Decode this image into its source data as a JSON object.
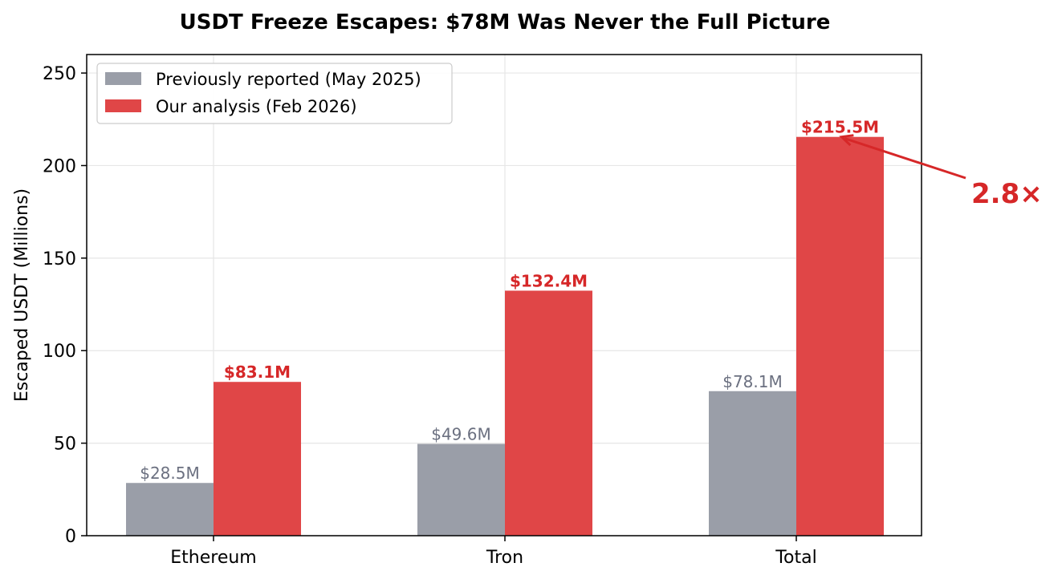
{
  "chart_data": {
    "type": "bar",
    "title": "USDT Freeze Escapes: $78M Was Never the Full Picture",
    "xlabel": "",
    "ylabel": "Escaped USDT (Millions)",
    "categories": [
      "Ethereum",
      "Tron",
      "Total"
    ],
    "ylim": [
      0,
      260
    ],
    "yticks": [
      0,
      50,
      100,
      150,
      200,
      250
    ],
    "grid": true,
    "legend_position": "top-left",
    "series": [
      {
        "name": "Previously reported (May 2025)",
        "values": [
          28.5,
          49.6,
          78.1
        ],
        "labels": [
          "$28.5M",
          "$49.6M",
          "$78.1M"
        ],
        "color": "#9a9ea8",
        "label_color": "#6b7080"
      },
      {
        "name": "Our analysis (Feb 2026)",
        "values": [
          83.1,
          132.4,
          215.5
        ],
        "labels": [
          "$83.1M",
          "$132.4M",
          "$215.5M"
        ],
        "color": "#e04647",
        "label_color": "#d62728"
      }
    ],
    "annotations": [
      {
        "text": "2.8×",
        "target_category": "Total",
        "target_value": 215.5,
        "color": "#d62728"
      }
    ]
  }
}
